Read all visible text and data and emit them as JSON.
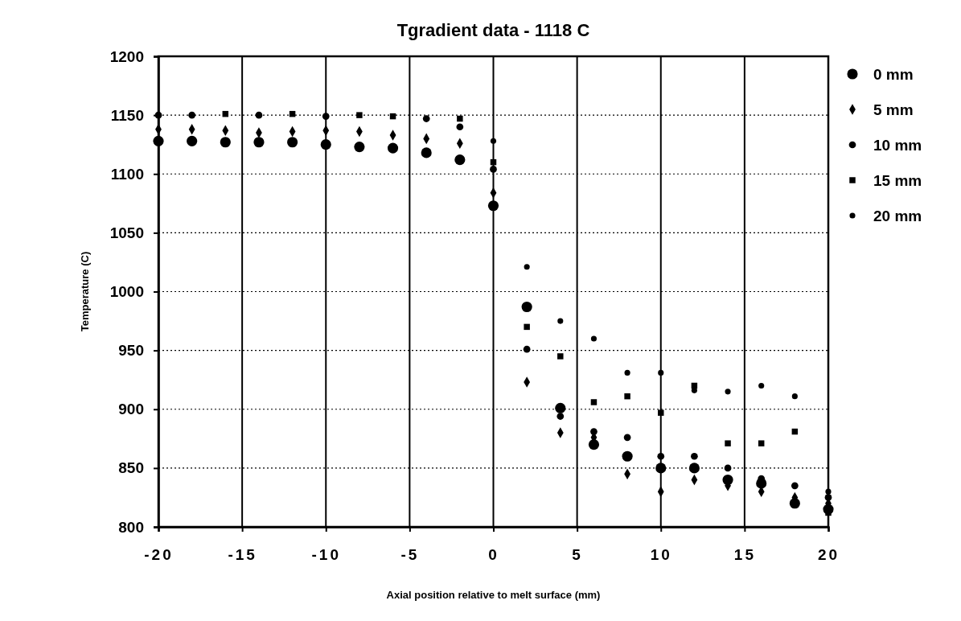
{
  "chart_data": {
    "type": "scatter",
    "title": "Tgradient  data  -  1118  C",
    "xlabel": "Axial position relative to melt surface (mm)",
    "ylabel": "Temperature (C)",
    "x": [
      -20,
      -18,
      -16,
      -14,
      -12,
      -10,
      -8,
      -6,
      -4,
      -2,
      0,
      2,
      4,
      6,
      8,
      10,
      12,
      14,
      16,
      18,
      20
    ],
    "series": [
      {
        "name": "0 mm",
        "color": "#000000",
        "marker": "circle",
        "values": [
          1128,
          1128,
          1127,
          1127,
          1127,
          1125,
          1123,
          1122,
          1118,
          1112,
          1073,
          987,
          901,
          870,
          860,
          850,
          850,
          840,
          837,
          820,
          815
        ]
      },
      {
        "name": "5 mm",
        "color": "#000000",
        "marker": "diamond",
        "values": [
          1138,
          1138,
          1137,
          1135,
          1136,
          1137,
          1136,
          1133,
          1130,
          1126,
          1084,
          923,
          880,
          876,
          845,
          830,
          840,
          835,
          830,
          825,
          820
        ]
      },
      {
        "name": "10 mm",
        "color": "#000000",
        "marker": "circle",
        "values": [
          1150,
          1150,
          null,
          1150,
          null,
          1149,
          null,
          null,
          1147,
          1140,
          1104,
          951,
          894,
          881,
          876,
          860,
          860,
          850,
          841,
          835,
          825
        ]
      },
      {
        "name": "15 mm",
        "color": "#000000",
        "marker": "square",
        "values": [
          null,
          null,
          1151,
          null,
          1151,
          null,
          1150,
          1149,
          null,
          1147,
          1110,
          970,
          945,
          906,
          911,
          897,
          920,
          871,
          871,
          881,
          812
        ]
      },
      {
        "name": "20 mm",
        "color": "#000000",
        "marker": "circle",
        "values": [
          null,
          null,
          null,
          null,
          null,
          null,
          null,
          null,
          null,
          null,
          1128,
          1021,
          975,
          960,
          931,
          931,
          916,
          915,
          920,
          911,
          830
        ]
      }
    ],
    "xlim": [
      -20,
      20
    ],
    "xticks": [
      -20,
      -15,
      -10,
      -5,
      0,
      5,
      10,
      15,
      20
    ],
    "ylim": [
      800,
      1200
    ],
    "yticks": [
      800,
      850,
      900,
      950,
      1000,
      1050,
      1100,
      1150,
      1200
    ],
    "grid": true,
    "legend": "top right"
  }
}
